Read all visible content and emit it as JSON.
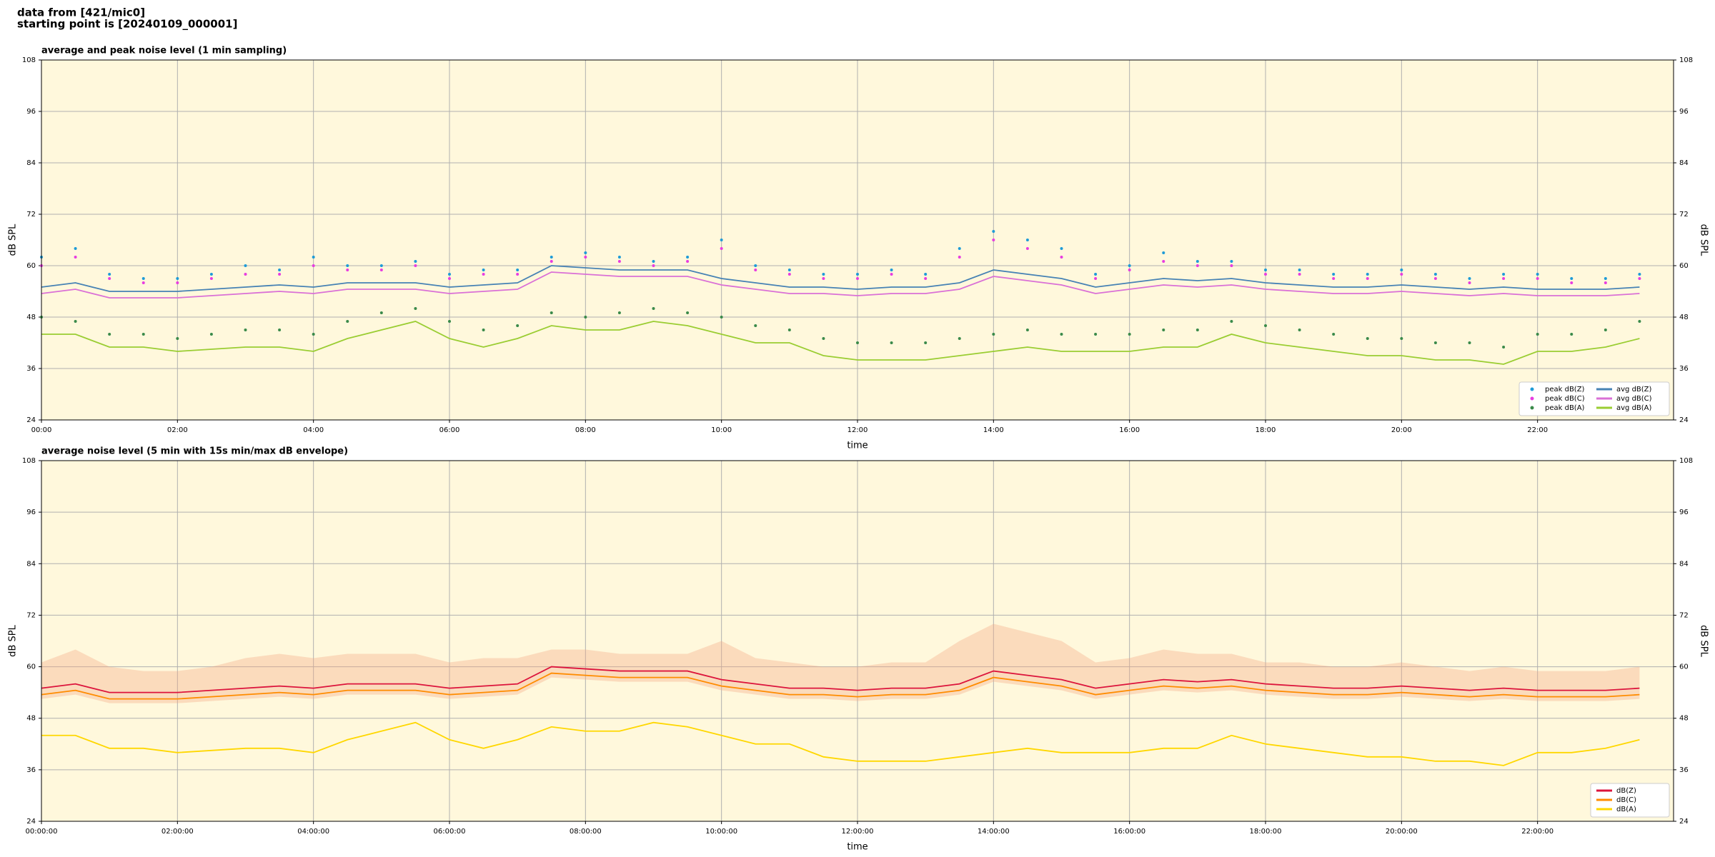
{
  "header": {
    "line1": "data from [421/mic0]",
    "line2": "starting point is [20240109_000001]"
  },
  "chart_data": [
    {
      "type": "line",
      "title": "average and peak noise level (1 min sampling)",
      "xlabel": "time",
      "ylabel": "dB SPL",
      "x": [
        "00:00",
        "00:30",
        "01:00",
        "01:30",
        "02:00",
        "02:30",
        "03:00",
        "03:30",
        "04:00",
        "04:30",
        "05:00",
        "05:30",
        "06:00",
        "06:30",
        "07:00",
        "07:30",
        "08:00",
        "08:30",
        "09:00",
        "09:30",
        "10:00",
        "10:30",
        "11:00",
        "11:30",
        "12:00",
        "12:30",
        "13:00",
        "13:30",
        "14:00",
        "14:30",
        "15:00",
        "15:30",
        "16:00",
        "16:30",
        "17:00",
        "17:30",
        "18:00",
        "18:30",
        "19:00",
        "19:30",
        "20:00",
        "20:30",
        "21:00",
        "21:30",
        "22:00",
        "22:30",
        "23:00",
        "23:30"
      ],
      "xlim": [
        "00:00",
        "24:00"
      ],
      "xticks": [
        "00:00",
        "02:00",
        "04:00",
        "06:00",
        "08:00",
        "10:00",
        "12:00",
        "14:00",
        "16:00",
        "18:00",
        "20:00",
        "22:00"
      ],
      "ylim": [
        24,
        108
      ],
      "yticks": [
        24,
        36,
        48,
        60,
        72,
        84,
        96,
        108
      ],
      "grid": true,
      "legend": "lower right",
      "legend_columns": 2,
      "series": [
        {
          "name": "peak dB(Z)",
          "kind": "scatter",
          "color": "#1e9bd7",
          "values": [
            62,
            64,
            58,
            57,
            57,
            58,
            60,
            59,
            62,
            60,
            60,
            61,
            58,
            59,
            59,
            62,
            63,
            62,
            61,
            62,
            66,
            60,
            59,
            58,
            58,
            59,
            58,
            64,
            68,
            66,
            64,
            58,
            60,
            63,
            61,
            61,
            59,
            59,
            58,
            58,
            59,
            58,
            57,
            58,
            58,
            57,
            57,
            58
          ]
        },
        {
          "name": "peak dB(C)",
          "kind": "scatter",
          "color": "#e83de0",
          "values": [
            60,
            62,
            57,
            56,
            56,
            57,
            58,
            58,
            60,
            59,
            59,
            60,
            57,
            58,
            58,
            61,
            62,
            61,
            60,
            61,
            64,
            59,
            58,
            57,
            57,
            58,
            57,
            62,
            66,
            64,
            62,
            57,
            59,
            61,
            60,
            60,
            58,
            58,
            57,
            57,
            58,
            57,
            56,
            57,
            57,
            56,
            56,
            57
          ]
        },
        {
          "name": "peak dB(A)",
          "kind": "scatter",
          "color": "#3a8a4a",
          "values": [
            48,
            47,
            44,
            44,
            43,
            44,
            45,
            45,
            44,
            47,
            49,
            50,
            47,
            45,
            46,
            49,
            48,
            49,
            50,
            49,
            48,
            46,
            45,
            43,
            42,
            42,
            42,
            43,
            44,
            45,
            44,
            44,
            44,
            45,
            45,
            47,
            46,
            45,
            44,
            43,
            43,
            42,
            42,
            41,
            44,
            44,
            45,
            47
          ]
        },
        {
          "name": "avg dB(Z)",
          "kind": "line",
          "color": "#4682b4",
          "values": [
            55,
            56,
            54,
            54,
            54,
            54.5,
            55,
            55.5,
            55,
            56,
            56,
            56,
            55,
            55.5,
            56,
            60,
            59.5,
            59,
            59,
            59,
            57,
            56,
            55,
            55,
            54.5,
            55,
            55,
            56,
            59,
            58,
            57,
            55,
            56,
            57,
            56.5,
            57,
            56,
            55.5,
            55,
            55,
            55.5,
            55,
            54.5,
            55,
            54.5,
            54.5,
            54.5,
            55
          ]
        },
        {
          "name": "avg dB(C)",
          "kind": "line",
          "color": "#da70d6",
          "values": [
            53.5,
            54.5,
            52.5,
            52.5,
            52.5,
            53,
            53.5,
            54,
            53.5,
            54.5,
            54.5,
            54.5,
            53.5,
            54,
            54.5,
            58.5,
            58,
            57.5,
            57.5,
            57.5,
            55.5,
            54.5,
            53.5,
            53.5,
            53,
            53.5,
            53.5,
            54.5,
            57.5,
            56.5,
            55.5,
            53.5,
            54.5,
            55.5,
            55,
            55.5,
            54.5,
            54,
            53.5,
            53.5,
            54,
            53.5,
            53,
            53.5,
            53,
            53,
            53,
            53.5
          ]
        },
        {
          "name": "avg dB(A)",
          "kind": "line",
          "color": "#9acd32",
          "values": [
            44,
            44,
            41,
            41,
            40,
            40.5,
            41,
            41,
            40,
            43,
            45,
            47,
            43,
            41,
            43,
            46,
            45,
            45,
            47,
            46,
            44,
            42,
            42,
            39,
            38,
            38,
            38,
            39,
            40,
            41,
            40,
            40,
            40,
            41,
            41,
            44,
            42,
            41,
            40,
            39,
            39,
            38,
            38,
            37,
            40,
            40,
            41,
            43
          ]
        }
      ]
    },
    {
      "type": "line",
      "title": "average noise level (5 min with 15s min/max dB envelope)",
      "xlabel": "time",
      "ylabel": "dB SPL",
      "x": [
        "00:00:00",
        "00:30:00",
        "01:00:00",
        "01:30:00",
        "02:00:00",
        "02:30:00",
        "03:00:00",
        "03:30:00",
        "04:00:00",
        "04:30:00",
        "05:00:00",
        "05:30:00",
        "06:00:00",
        "06:30:00",
        "07:00:00",
        "07:30:00",
        "08:00:00",
        "08:30:00",
        "09:00:00",
        "09:30:00",
        "10:00:00",
        "10:30:00",
        "11:00:00",
        "11:30:00",
        "12:00:00",
        "12:30:00",
        "13:00:00",
        "13:30:00",
        "14:00:00",
        "14:30:00",
        "15:00:00",
        "15:30:00",
        "16:00:00",
        "16:30:00",
        "17:00:00",
        "17:30:00",
        "18:00:00",
        "18:30:00",
        "19:00:00",
        "19:30:00",
        "20:00:00",
        "20:30:00",
        "21:00:00",
        "21:30:00",
        "22:00:00",
        "22:30:00",
        "23:00:00",
        "23:30:00"
      ],
      "xlim": [
        "00:00:00",
        "24:00:00"
      ],
      "xticks": [
        "00:00:00",
        "02:00:00",
        "04:00:00",
        "06:00:00",
        "08:00:00",
        "10:00:00",
        "12:00:00",
        "14:00:00",
        "16:00:00",
        "18:00:00",
        "20:00:00",
        "22:00:00"
      ],
      "ylim": [
        24,
        108
      ],
      "yticks": [
        24,
        36,
        48,
        60,
        72,
        84,
        96,
        108
      ],
      "grid": true,
      "legend": "lower right",
      "legend_columns": 1,
      "envelope": {
        "color": "#f4a582",
        "upper": [
          61,
          64,
          60,
          59,
          59,
          60,
          62,
          63,
          62,
          63,
          63,
          63,
          61,
          62,
          62,
          64,
          64,
          63,
          63,
          63,
          66,
          62,
          61,
          60,
          60,
          61,
          61,
          66,
          70,
          68,
          66,
          61,
          62,
          64,
          63,
          63,
          61,
          61,
          60,
          60,
          61,
          60,
          59,
          60,
          59,
          59,
          59,
          60
        ],
        "lower": [
          52.5,
          53.5,
          51.5,
          51.5,
          51.5,
          52,
          52.5,
          53,
          52.5,
          53.5,
          53.5,
          53.5,
          52.5,
          53,
          53.5,
          57.5,
          57,
          56.5,
          56.5,
          56.5,
          54.5,
          53.5,
          52.5,
          52.5,
          52,
          52.5,
          52.5,
          53.5,
          56.5,
          55.5,
          54.5,
          52.5,
          53.5,
          54.5,
          54,
          54.5,
          53.5,
          53,
          52.5,
          52.5,
          53,
          52.5,
          52,
          52.5,
          52,
          52,
          52,
          52.5
        ]
      },
      "series": [
        {
          "name": "dB(Z)",
          "kind": "line",
          "color": "#dc143c",
          "values": [
            55,
            56,
            54,
            54,
            54,
            54.5,
            55,
            55.5,
            55,
            56,
            56,
            56,
            55,
            55.5,
            56,
            60,
            59.5,
            59,
            59,
            59,
            57,
            56,
            55,
            55,
            54.5,
            55,
            55,
            56,
            59,
            58,
            57,
            55,
            56,
            57,
            56.5,
            57,
            56,
            55.5,
            55,
            55,
            55.5,
            55,
            54.5,
            55,
            54.5,
            54.5,
            54.5,
            55
          ]
        },
        {
          "name": "dB(C)",
          "kind": "line",
          "color": "#ff8c00",
          "values": [
            53.5,
            54.5,
            52.5,
            52.5,
            52.5,
            53,
            53.5,
            54,
            53.5,
            54.5,
            54.5,
            54.5,
            53.5,
            54,
            54.5,
            58.5,
            58,
            57.5,
            57.5,
            57.5,
            55.5,
            54.5,
            53.5,
            53.5,
            53,
            53.5,
            53.5,
            54.5,
            57.5,
            56.5,
            55.5,
            53.5,
            54.5,
            55.5,
            55,
            55.5,
            54.5,
            54,
            53.5,
            53.5,
            54,
            53.5,
            53,
            53.5,
            53,
            53,
            53,
            53.5
          ]
        },
        {
          "name": "dB(A)",
          "kind": "line",
          "color": "#ffd700",
          "values": [
            44,
            44,
            41,
            41,
            40,
            40.5,
            41,
            41,
            40,
            43,
            45,
            47,
            43,
            41,
            43,
            46,
            45,
            45,
            47,
            46,
            44,
            42,
            42,
            39,
            38,
            38,
            38,
            39,
            40,
            41,
            40,
            40,
            40,
            41,
            41,
            44,
            42,
            41,
            40,
            39,
            39,
            38,
            38,
            37,
            40,
            40,
            41,
            43
          ]
        }
      ]
    }
  ]
}
